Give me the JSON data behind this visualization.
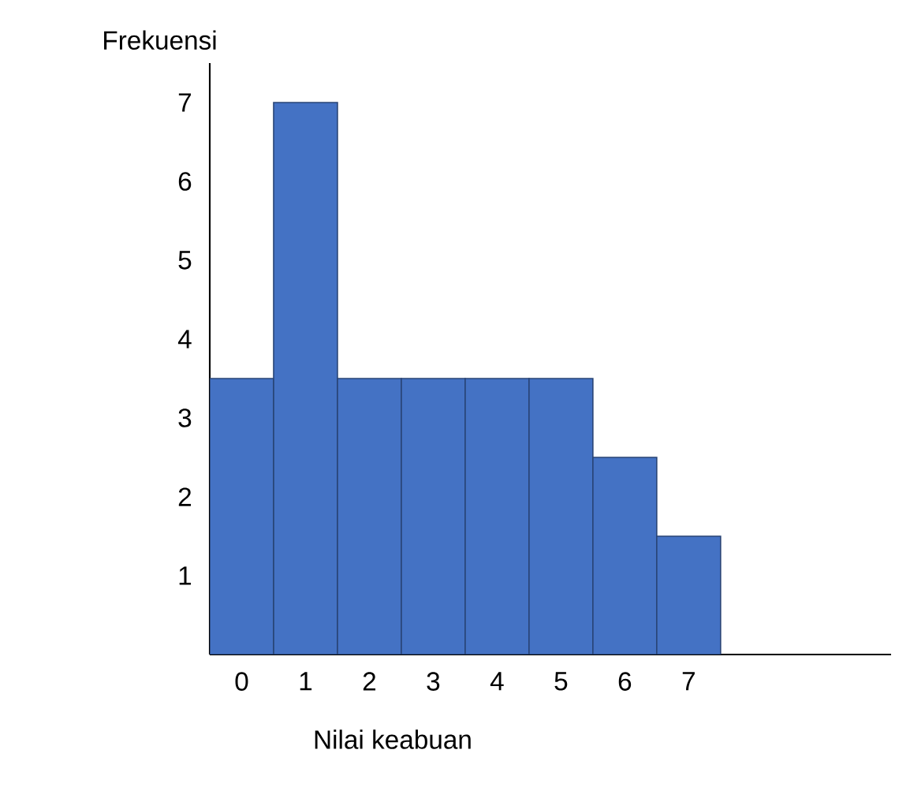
{
  "chart_data": {
    "type": "bar",
    "ylabel": "Frekuensi",
    "xlabel": "Nilai keabuan",
    "categories": [
      "0",
      "1",
      "2",
      "3",
      "4",
      "5",
      "6",
      "7"
    ],
    "values": [
      3.5,
      7,
      3.5,
      3.5,
      3.5,
      3.5,
      2.5,
      1.5
    ],
    "color": "#4472c4",
    "ylim": [
      0,
      7.5
    ],
    "yticks": [
      1,
      2,
      3,
      4,
      5,
      6,
      7
    ],
    "grid": false
  }
}
